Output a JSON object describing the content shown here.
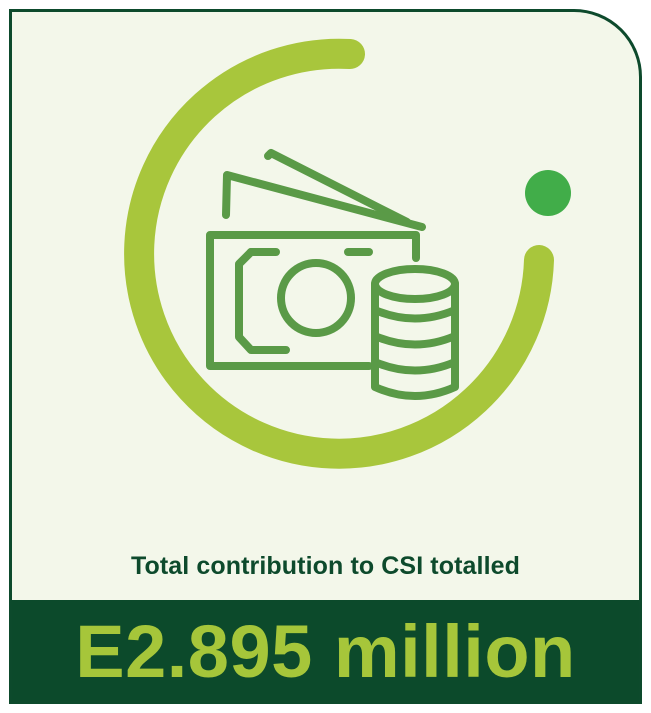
{
  "caption": "Total contribution to CSI totalled",
  "amount": "E2.895 million",
  "icon": "money-bills-and-coins-icon",
  "colors": {
    "dark_green": "#0c4a2b",
    "lime_green": "#a6c63a",
    "icon_green": "#5a9a47",
    "dot_green": "#41ad49",
    "background": "#f3f7ea"
  }
}
